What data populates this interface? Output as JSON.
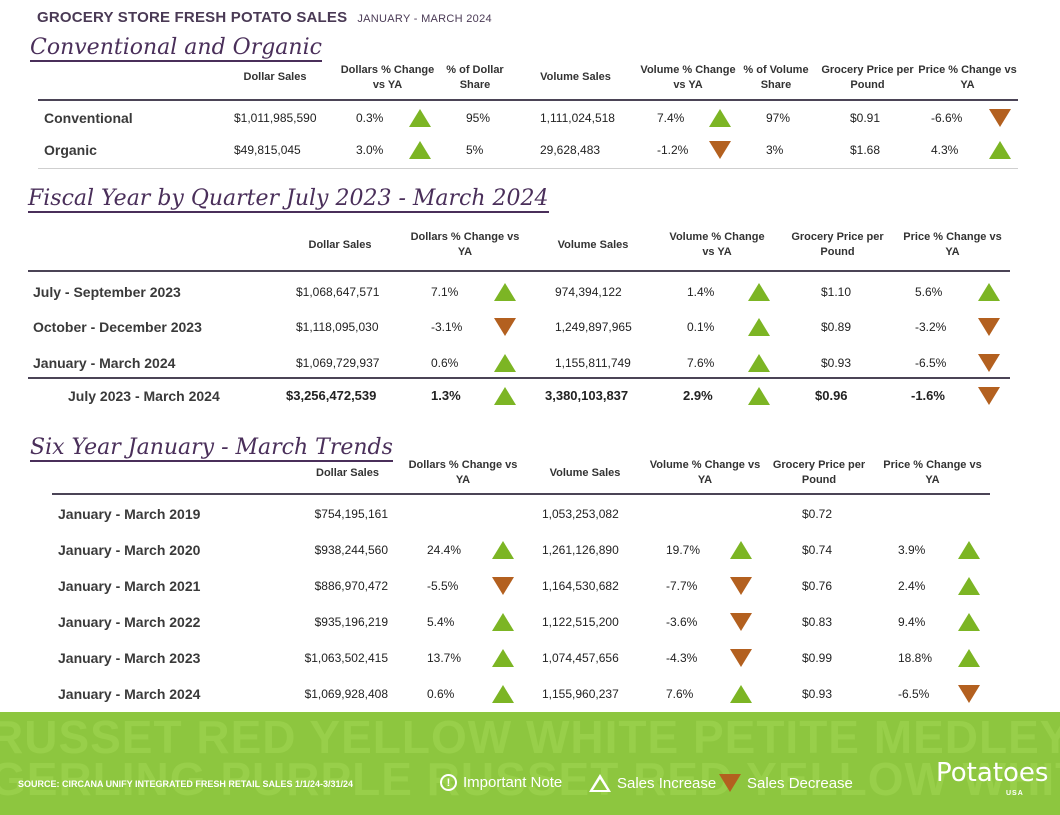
{
  "header": {
    "title": "GROCERY STORE  FRESH POTATO SALES",
    "period": "JANUARY - MARCH 2024"
  },
  "conventional_organic": {
    "title": "Conventional and Organic",
    "headers": [
      "Dollar Sales",
      "Dollars % Change vs YA",
      "% of Dollar Share",
      "Volume Sales",
      "Volume % Change vs YA",
      "% of Volume Share",
      "Grocery Price per Pound",
      "Price % Change vs YA"
    ],
    "rows": [
      {
        "label": "Conventional",
        "dollar_sales": "$1,011,985,590",
        "dollars_change": "0.3%",
        "dollars_dir": "up",
        "dollar_share": "95%",
        "volume_sales": "1,111,024,518",
        "volume_change": "7.4%",
        "volume_dir": "up",
        "volume_share": "97%",
        "price": "$0.91",
        "price_change": "-6.6%",
        "price_dir": "down"
      },
      {
        "label": "Organic",
        "dollar_sales": "$49,815,045",
        "dollars_change": "3.0%",
        "dollars_dir": "up",
        "dollar_share": "5%",
        "volume_sales": "29,628,483",
        "volume_change": "-1.2%",
        "volume_dir": "down",
        "volume_share": "3%",
        "price": "$1.68",
        "price_change": "4.3%",
        "price_dir": "up"
      }
    ]
  },
  "fiscal_year": {
    "title": "Fiscal Year by Quarter July 2023 - March 2024",
    "headers": [
      "Dollar Sales",
      "Dollars % Change vs YA",
      "Volume Sales",
      "Volume % Change vs YA",
      "Grocery Price per Pound",
      "Price % Change vs YA"
    ],
    "rows": [
      {
        "label": "July - September 2023",
        "dollar_sales": "$1,068,647,571",
        "dollars_change": "7.1%",
        "dollars_dir": "up",
        "volume_sales": "974,394,122",
        "volume_change": "1.4%",
        "volume_dir": "up",
        "price": "$1.10",
        "price_change": "5.6%",
        "price_dir": "up"
      },
      {
        "label": "October - December 2023",
        "dollar_sales": "$1,118,095,030",
        "dollars_change": "-3.1%",
        "dollars_dir": "down",
        "volume_sales": "1,249,897,965",
        "volume_change": "0.1%",
        "volume_dir": "up",
        "price": "$0.89",
        "price_change": "-3.2%",
        "price_dir": "down"
      },
      {
        "label": "January - March 2024",
        "dollar_sales": "$1,069,729,937",
        "dollars_change": "0.6%",
        "dollars_dir": "up",
        "volume_sales": "1,155,811,749",
        "volume_change": "7.6%",
        "volume_dir": "up",
        "price": "$0.93",
        "price_change": "-6.5%",
        "price_dir": "down"
      }
    ],
    "total": {
      "label": "July 2023 - March 2024",
      "dollar_sales": "$3,256,472,539",
      "dollars_change": "1.3%",
      "dollars_dir": "up",
      "volume_sales": "3,380,103,837",
      "volume_change": "2.9%",
      "volume_dir": "up",
      "price": "$0.96",
      "price_change": "-1.6%",
      "price_dir": "down"
    }
  },
  "six_year": {
    "title": "Six Year January - March Trends",
    "headers": [
      "Dollar Sales",
      "Dollars % Change vs YA",
      "Volume Sales",
      "Volume % Change vs YA",
      "Grocery Price per Pound",
      "Price % Change vs YA"
    ],
    "rows": [
      {
        "label": "January - March 2019",
        "dollar_sales": "$754,195,161",
        "dollars_change": "",
        "dollars_dir": "",
        "volume_sales": "1,053,253,082",
        "volume_change": "",
        "volume_dir": "",
        "price": "$0.72",
        "price_change": "",
        "price_dir": ""
      },
      {
        "label": "January - March 2020",
        "dollar_sales": "$938,244,560",
        "dollars_change": "24.4%",
        "dollars_dir": "up",
        "volume_sales": "1,261,126,890",
        "volume_change": "19.7%",
        "volume_dir": "up",
        "price": "$0.74",
        "price_change": "3.9%",
        "price_dir": "up"
      },
      {
        "label": "January - March 2021",
        "dollar_sales": "$886,970,472",
        "dollars_change": "-5.5%",
        "dollars_dir": "down",
        "volume_sales": "1,164,530,682",
        "volume_change": "-7.7%",
        "volume_dir": "down",
        "price": "$0.76",
        "price_change": "2.4%",
        "price_dir": "up"
      },
      {
        "label": "January - March 2022",
        "dollar_sales": "$935,196,219",
        "dollars_change": "5.4%",
        "dollars_dir": "up",
        "volume_sales": "1,122,515,200",
        "volume_change": "-3.6%",
        "volume_dir": "down",
        "price": "$0.83",
        "price_change": "9.4%",
        "price_dir": "up"
      },
      {
        "label": "January - March 2023",
        "dollar_sales": "$1,063,502,415",
        "dollars_change": "13.7%",
        "dollars_dir": "up",
        "volume_sales": "1,074,457,656",
        "volume_change": "-4.3%",
        "volume_dir": "down",
        "price": "$0.99",
        "price_change": "18.8%",
        "price_dir": "up"
      },
      {
        "label": "January - March 2024",
        "dollar_sales": "$1,069,928,408",
        "dollars_change": "0.6%",
        "dollars_dir": "up",
        "volume_sales": "1,155,960,237",
        "volume_change": "7.6%",
        "volume_dir": "up",
        "price": "$0.93",
        "price_change": "-6.5%",
        "price_dir": "down"
      }
    ]
  },
  "footer": {
    "bg_text_1": "RUSSET RED YELLOW WHITE PETITE MEDLEY FIN",
    "bg_text_2": "GERLING PURPLE RUSSET RED YELLOW WHITE",
    "source": "SOURCE: CIRCANA UNIFY INTEGRATED FRESH RETAIL SALES 1/1/24-3/31/24",
    "important_note": "Important Note",
    "sales_increase": "Sales Increase",
    "sales_decrease": "Sales Decrease",
    "brand": "Potatoes",
    "brand_sub": "USA",
    "colors": {
      "up": "#7cb524",
      "down": "#b3601f",
      "banner": "#8dc63f"
    }
  }
}
